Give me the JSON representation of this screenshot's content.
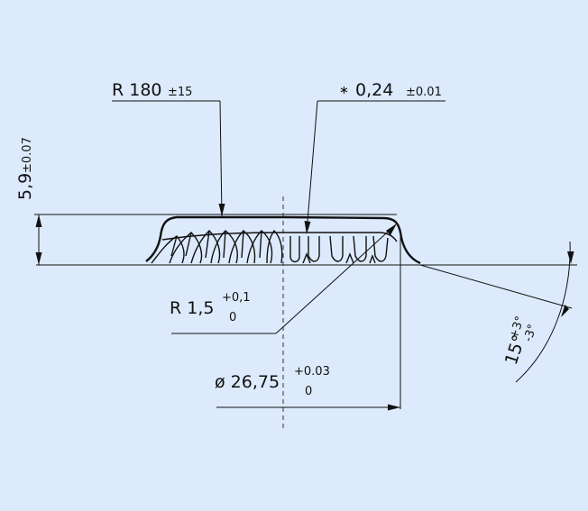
{
  "drawing": {
    "radius_dim": {
      "text": "R 180",
      "tol": "±15"
    },
    "thickness_dim": {
      "prefix": "∗",
      "text": "0,24",
      "tol": "±0.01"
    },
    "height_dim": {
      "text": "5,9",
      "tol": "±0.07"
    },
    "fillet_dim": {
      "text": "R 1,5",
      "upper": "+0,1",
      "lower": "0"
    },
    "diameter_dim": {
      "text": "ø 26,75",
      "upper": "+0.03",
      "lower": "0"
    },
    "angle_dim": {
      "text": "15°",
      "upper": "+3°",
      "lower": "-3°"
    }
  }
}
